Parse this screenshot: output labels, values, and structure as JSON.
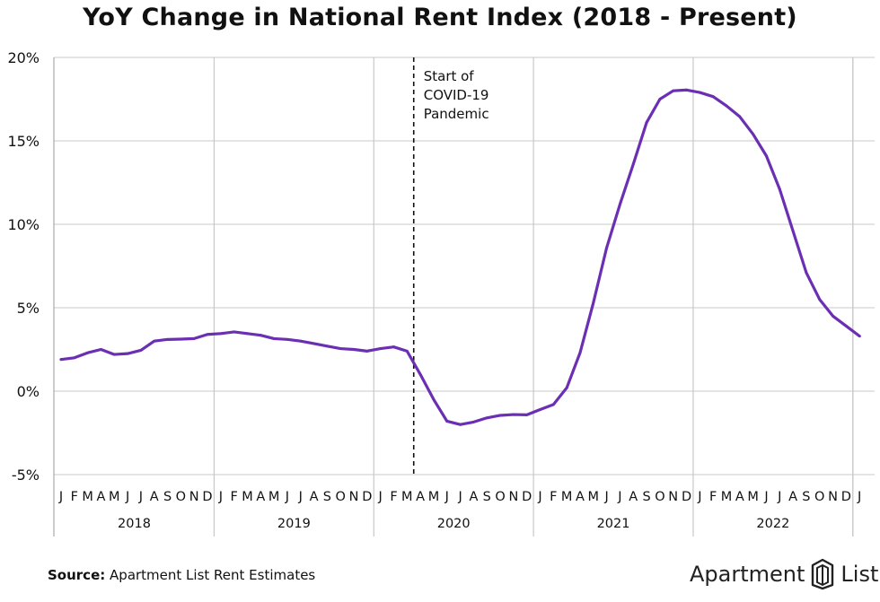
{
  "title": "YoY Change in National Rent Index (2018 - Present)",
  "source": {
    "label": "Source:",
    "text": "Apartment List Rent Estimates"
  },
  "brand": {
    "word1": "Apartment",
    "word2": "List",
    "icon": "apartment-list-logo-icon"
  },
  "colors": {
    "line": "#6b2fb3",
    "grid": "#c8c8c8",
    "axis": "#9a9a9a",
    "text": "#111111"
  },
  "chart_data": {
    "type": "line",
    "title": "YoY Change in National Rent Index (2018 - Present)",
    "ylim": [
      -5,
      20
    ],
    "yticks": [
      -5,
      0,
      5,
      10,
      15,
      20
    ],
    "ytick_labels": [
      "-5%",
      "0%",
      "5%",
      "10%",
      "15%",
      "20%"
    ],
    "grid": true,
    "month_labels": [
      "J",
      "F",
      "M",
      "A",
      "M",
      "J",
      "J",
      "A",
      "S",
      "O",
      "N",
      "D",
      "J",
      "F",
      "M",
      "A",
      "M",
      "J",
      "J",
      "A",
      "S",
      "O",
      "N",
      "D",
      "J",
      "F",
      "M",
      "A",
      "M",
      "J",
      "J",
      "A",
      "S",
      "O",
      "N",
      "D",
      "J",
      "F",
      "M",
      "A",
      "M",
      "J",
      "J",
      "A",
      "S",
      "O",
      "N",
      "D",
      "J",
      "F",
      "M",
      "A",
      "M",
      "J",
      "J",
      "A",
      "S",
      "O",
      "N",
      "D",
      "J"
    ],
    "year_labels": [
      "2018",
      "2019",
      "2020",
      "2021",
      "2022"
    ],
    "annotation": {
      "text": [
        "Start of",
        "COVID-19",
        "Pandemic"
      ],
      "at_month_index": 26.5
    },
    "series": [
      {
        "values": [
          1.9,
          2.0,
          2.3,
          2.5,
          2.2,
          2.25,
          2.45,
          3.0,
          3.1,
          3.12,
          3.15,
          3.4,
          3.45,
          3.55,
          3.45,
          3.35,
          3.15,
          3.1,
          3.0,
          2.85,
          2.7,
          2.55,
          2.5,
          2.4,
          2.55,
          2.65,
          2.4,
          1.0,
          -0.5,
          -1.8,
          -2.0,
          -1.85,
          -1.6,
          -1.45,
          -1.4,
          -1.42,
          -1.1,
          -0.8,
          0.2,
          2.3,
          5.3,
          8.6,
          11.2,
          13.6,
          16.1,
          17.5,
          18.0,
          18.05,
          17.9,
          17.65,
          17.1,
          16.45,
          15.4,
          14.1,
          12.1,
          9.6,
          7.1,
          5.5,
          4.5,
          3.9,
          3.3
        ]
      }
    ]
  }
}
